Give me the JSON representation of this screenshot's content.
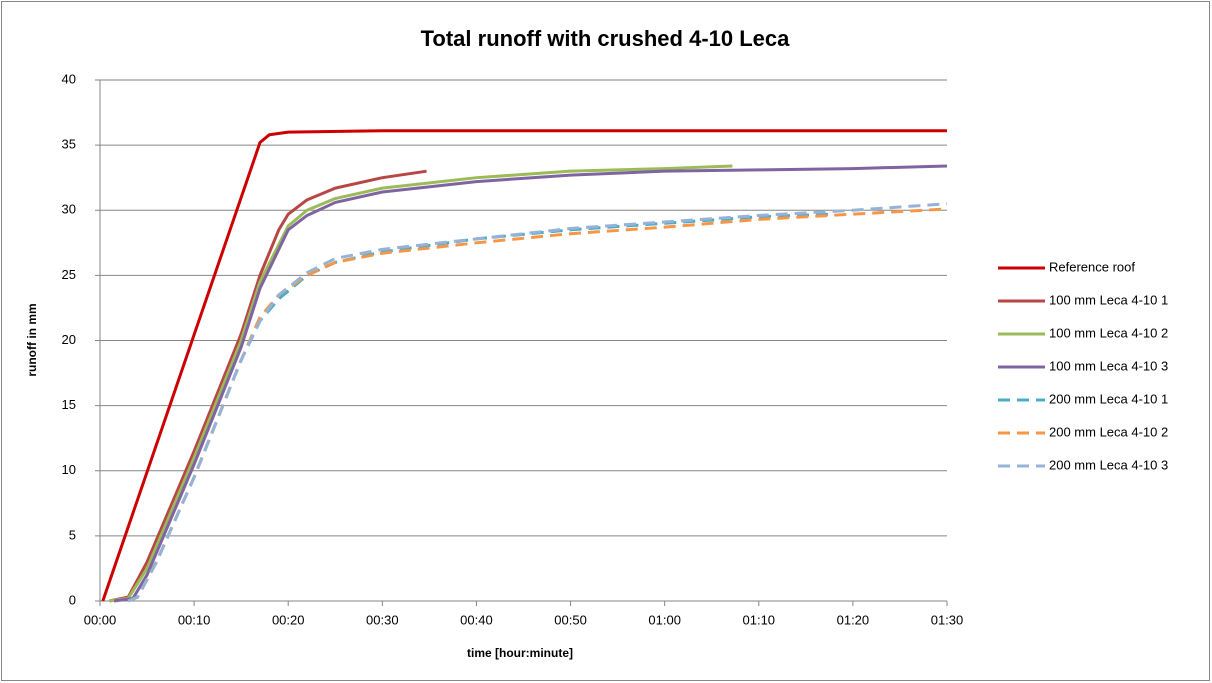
{
  "chart_data": {
    "type": "line",
    "title": "Total runoff with crushed 4-10 Leca",
    "xlabel": "time [hour:minute]",
    "ylabel": "runoff in mm",
    "xlim": [
      0,
      90
    ],
    "xticks": [
      {
        "value": 0,
        "label": "00:00"
      },
      {
        "value": 10,
        "label": "00:10"
      },
      {
        "value": 20,
        "label": "00:20"
      },
      {
        "value": 30,
        "label": "00:30"
      },
      {
        "value": 40,
        "label": "00:40"
      },
      {
        "value": 50,
        "label": "00:50"
      },
      {
        "value": 60,
        "label": "01:00"
      },
      {
        "value": 70,
        "label": "01:10"
      },
      {
        "value": 80,
        "label": "01:20"
      },
      {
        "value": 90,
        "label": "01:30"
      }
    ],
    "ylim": [
      0,
      40
    ],
    "yticks": [
      0,
      5,
      10,
      15,
      20,
      25,
      30,
      35,
      40
    ],
    "grid": true,
    "legend": "right",
    "series": [
      {
        "name": "Reference roof",
        "color": "#cc0000",
        "dashed": false,
        "x": [
          0.3,
          17,
          18,
          20,
          30,
          90
        ],
        "values": [
          0,
          35.2,
          35.8,
          36,
          36.1,
          36.1
        ]
      },
      {
        "name": "100 mm Leca 4-10 1",
        "color": "#b84644",
        "dashed": false,
        "x": [
          1,
          3,
          5,
          10,
          15,
          17,
          19,
          20,
          22,
          25,
          30,
          34.7
        ],
        "values": [
          0,
          0.3,
          3,
          11.5,
          20.5,
          25,
          28.5,
          29.7,
          30.8,
          31.7,
          32.5,
          33
        ]
      },
      {
        "name": "100 mm Leca 4-10 2",
        "color": "#9bbb59",
        "dashed": false,
        "x": [
          1,
          3,
          5,
          10,
          15,
          17,
          20,
          22,
          25,
          30,
          40,
          50,
          60,
          67.2
        ],
        "values": [
          0,
          0.2,
          2.5,
          11,
          20,
          24.5,
          28.8,
          30,
          30.9,
          31.7,
          32.5,
          33,
          33.2,
          33.4
        ]
      },
      {
        "name": "100 mm Leca 4-10 3",
        "color": "#8064a2",
        "dashed": false,
        "x": [
          1.5,
          3.5,
          5,
          10,
          15,
          17,
          20,
          22,
          25,
          30,
          40,
          50,
          60,
          70,
          80,
          90
        ],
        "values": [
          0,
          0.2,
          2,
          10.5,
          19.5,
          24,
          28.5,
          29.6,
          30.6,
          31.4,
          32.2,
          32.7,
          33,
          33.1,
          33.2,
          33.4
        ]
      },
      {
        "name": "200 mm Leca 4-10 1",
        "color": "#4bacc6",
        "dashed": true,
        "x": [
          3,
          4,
          6,
          10,
          15,
          17,
          19,
          22,
          25,
          30,
          40,
          50,
          60,
          70,
          78
        ],
        "values": [
          0,
          0.3,
          3,
          9.5,
          18.5,
          21.5,
          23.2,
          25,
          26,
          26.8,
          27.8,
          28.5,
          29,
          29.5,
          29.7
        ]
      },
      {
        "name": "200 mm Leca 4-10 2",
        "color": "#f79646",
        "dashed": true,
        "x": [
          3,
          4,
          6,
          10,
          15,
          17,
          19,
          22,
          25,
          30,
          40,
          50,
          60,
          70,
          80,
          90
        ],
        "values": [
          0,
          0.3,
          3,
          9.5,
          18.5,
          21.8,
          23.5,
          25,
          26,
          26.7,
          27.5,
          28.2,
          28.7,
          29.3,
          29.7,
          30.1
        ]
      },
      {
        "name": "200 mm Leca 4-10 3",
        "color": "#95b3d7",
        "dashed": true,
        "x": [
          3,
          4,
          6,
          10,
          15,
          17,
          19,
          22,
          25,
          30,
          40,
          50,
          60,
          70,
          80,
          90
        ],
        "values": [
          0,
          0.3,
          3,
          9.5,
          18.5,
          21.5,
          23.5,
          25.2,
          26.3,
          27,
          27.8,
          28.6,
          29.1,
          29.6,
          30,
          30.5
        ]
      }
    ]
  }
}
